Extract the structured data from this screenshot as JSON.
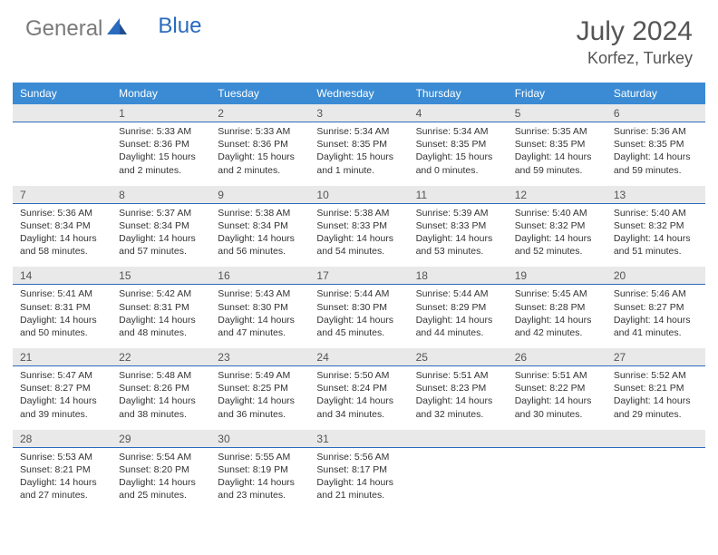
{
  "logo": {
    "gray": "General",
    "blue": "Blue"
  },
  "title": "July 2024",
  "location": "Korfez, Turkey",
  "colors": {
    "header_bg": "#3b8bd4",
    "header_text": "#ffffff",
    "daynum_bg": "#e9e9e9",
    "daynum_border": "#2a6bbf",
    "body_text": "#333333",
    "title_text": "#555555",
    "logo_gray": "#7a7a7a",
    "logo_blue": "#2a6bbf"
  },
  "typography": {
    "title_fontsize": 30,
    "location_fontsize": 18,
    "header_fontsize": 12,
    "daynum_fontsize": 12,
    "cell_fontsize": 10.5
  },
  "day_names": [
    "Sunday",
    "Monday",
    "Tuesday",
    "Wednesday",
    "Thursday",
    "Friday",
    "Saturday"
  ],
  "weeks": [
    {
      "nums": [
        "",
        "1",
        "2",
        "3",
        "4",
        "5",
        "6"
      ],
      "cells": [
        {
          "sunrise": "",
          "sunset": "",
          "daylight1": "",
          "daylight2": ""
        },
        {
          "sunrise": "Sunrise: 5:33 AM",
          "sunset": "Sunset: 8:36 PM",
          "daylight1": "Daylight: 15 hours",
          "daylight2": "and 2 minutes."
        },
        {
          "sunrise": "Sunrise: 5:33 AM",
          "sunset": "Sunset: 8:36 PM",
          "daylight1": "Daylight: 15 hours",
          "daylight2": "and 2 minutes."
        },
        {
          "sunrise": "Sunrise: 5:34 AM",
          "sunset": "Sunset: 8:35 PM",
          "daylight1": "Daylight: 15 hours",
          "daylight2": "and 1 minute."
        },
        {
          "sunrise": "Sunrise: 5:34 AM",
          "sunset": "Sunset: 8:35 PM",
          "daylight1": "Daylight: 15 hours",
          "daylight2": "and 0 minutes."
        },
        {
          "sunrise": "Sunrise: 5:35 AM",
          "sunset": "Sunset: 8:35 PM",
          "daylight1": "Daylight: 14 hours",
          "daylight2": "and 59 minutes."
        },
        {
          "sunrise": "Sunrise: 5:36 AM",
          "sunset": "Sunset: 8:35 PM",
          "daylight1": "Daylight: 14 hours",
          "daylight2": "and 59 minutes."
        }
      ]
    },
    {
      "nums": [
        "7",
        "8",
        "9",
        "10",
        "11",
        "12",
        "13"
      ],
      "cells": [
        {
          "sunrise": "Sunrise: 5:36 AM",
          "sunset": "Sunset: 8:34 PM",
          "daylight1": "Daylight: 14 hours",
          "daylight2": "and 58 minutes."
        },
        {
          "sunrise": "Sunrise: 5:37 AM",
          "sunset": "Sunset: 8:34 PM",
          "daylight1": "Daylight: 14 hours",
          "daylight2": "and 57 minutes."
        },
        {
          "sunrise": "Sunrise: 5:38 AM",
          "sunset": "Sunset: 8:34 PM",
          "daylight1": "Daylight: 14 hours",
          "daylight2": "and 56 minutes."
        },
        {
          "sunrise": "Sunrise: 5:38 AM",
          "sunset": "Sunset: 8:33 PM",
          "daylight1": "Daylight: 14 hours",
          "daylight2": "and 54 minutes."
        },
        {
          "sunrise": "Sunrise: 5:39 AM",
          "sunset": "Sunset: 8:33 PM",
          "daylight1": "Daylight: 14 hours",
          "daylight2": "and 53 minutes."
        },
        {
          "sunrise": "Sunrise: 5:40 AM",
          "sunset": "Sunset: 8:32 PM",
          "daylight1": "Daylight: 14 hours",
          "daylight2": "and 52 minutes."
        },
        {
          "sunrise": "Sunrise: 5:40 AM",
          "sunset": "Sunset: 8:32 PM",
          "daylight1": "Daylight: 14 hours",
          "daylight2": "and 51 minutes."
        }
      ]
    },
    {
      "nums": [
        "14",
        "15",
        "16",
        "17",
        "18",
        "19",
        "20"
      ],
      "cells": [
        {
          "sunrise": "Sunrise: 5:41 AM",
          "sunset": "Sunset: 8:31 PM",
          "daylight1": "Daylight: 14 hours",
          "daylight2": "and 50 minutes."
        },
        {
          "sunrise": "Sunrise: 5:42 AM",
          "sunset": "Sunset: 8:31 PM",
          "daylight1": "Daylight: 14 hours",
          "daylight2": "and 48 minutes."
        },
        {
          "sunrise": "Sunrise: 5:43 AM",
          "sunset": "Sunset: 8:30 PM",
          "daylight1": "Daylight: 14 hours",
          "daylight2": "and 47 minutes."
        },
        {
          "sunrise": "Sunrise: 5:44 AM",
          "sunset": "Sunset: 8:30 PM",
          "daylight1": "Daylight: 14 hours",
          "daylight2": "and 45 minutes."
        },
        {
          "sunrise": "Sunrise: 5:44 AM",
          "sunset": "Sunset: 8:29 PM",
          "daylight1": "Daylight: 14 hours",
          "daylight2": "and 44 minutes."
        },
        {
          "sunrise": "Sunrise: 5:45 AM",
          "sunset": "Sunset: 8:28 PM",
          "daylight1": "Daylight: 14 hours",
          "daylight2": "and 42 minutes."
        },
        {
          "sunrise": "Sunrise: 5:46 AM",
          "sunset": "Sunset: 8:27 PM",
          "daylight1": "Daylight: 14 hours",
          "daylight2": "and 41 minutes."
        }
      ]
    },
    {
      "nums": [
        "21",
        "22",
        "23",
        "24",
        "25",
        "26",
        "27"
      ],
      "cells": [
        {
          "sunrise": "Sunrise: 5:47 AM",
          "sunset": "Sunset: 8:27 PM",
          "daylight1": "Daylight: 14 hours",
          "daylight2": "and 39 minutes."
        },
        {
          "sunrise": "Sunrise: 5:48 AM",
          "sunset": "Sunset: 8:26 PM",
          "daylight1": "Daylight: 14 hours",
          "daylight2": "and 38 minutes."
        },
        {
          "sunrise": "Sunrise: 5:49 AM",
          "sunset": "Sunset: 8:25 PM",
          "daylight1": "Daylight: 14 hours",
          "daylight2": "and 36 minutes."
        },
        {
          "sunrise": "Sunrise: 5:50 AM",
          "sunset": "Sunset: 8:24 PM",
          "daylight1": "Daylight: 14 hours",
          "daylight2": "and 34 minutes."
        },
        {
          "sunrise": "Sunrise: 5:51 AM",
          "sunset": "Sunset: 8:23 PM",
          "daylight1": "Daylight: 14 hours",
          "daylight2": "and 32 minutes."
        },
        {
          "sunrise": "Sunrise: 5:51 AM",
          "sunset": "Sunset: 8:22 PM",
          "daylight1": "Daylight: 14 hours",
          "daylight2": "and 30 minutes."
        },
        {
          "sunrise": "Sunrise: 5:52 AM",
          "sunset": "Sunset: 8:21 PM",
          "daylight1": "Daylight: 14 hours",
          "daylight2": "and 29 minutes."
        }
      ]
    },
    {
      "nums": [
        "28",
        "29",
        "30",
        "31",
        "",
        "",
        ""
      ],
      "cells": [
        {
          "sunrise": "Sunrise: 5:53 AM",
          "sunset": "Sunset: 8:21 PM",
          "daylight1": "Daylight: 14 hours",
          "daylight2": "and 27 minutes."
        },
        {
          "sunrise": "Sunrise: 5:54 AM",
          "sunset": "Sunset: 8:20 PM",
          "daylight1": "Daylight: 14 hours",
          "daylight2": "and 25 minutes."
        },
        {
          "sunrise": "Sunrise: 5:55 AM",
          "sunset": "Sunset: 8:19 PM",
          "daylight1": "Daylight: 14 hours",
          "daylight2": "and 23 minutes."
        },
        {
          "sunrise": "Sunrise: 5:56 AM",
          "sunset": "Sunset: 8:17 PM",
          "daylight1": "Daylight: 14 hours",
          "daylight2": "and 21 minutes."
        },
        {
          "sunrise": "",
          "sunset": "",
          "daylight1": "",
          "daylight2": ""
        },
        {
          "sunrise": "",
          "sunset": "",
          "daylight1": "",
          "daylight2": ""
        },
        {
          "sunrise": "",
          "sunset": "",
          "daylight1": "",
          "daylight2": ""
        }
      ]
    }
  ]
}
